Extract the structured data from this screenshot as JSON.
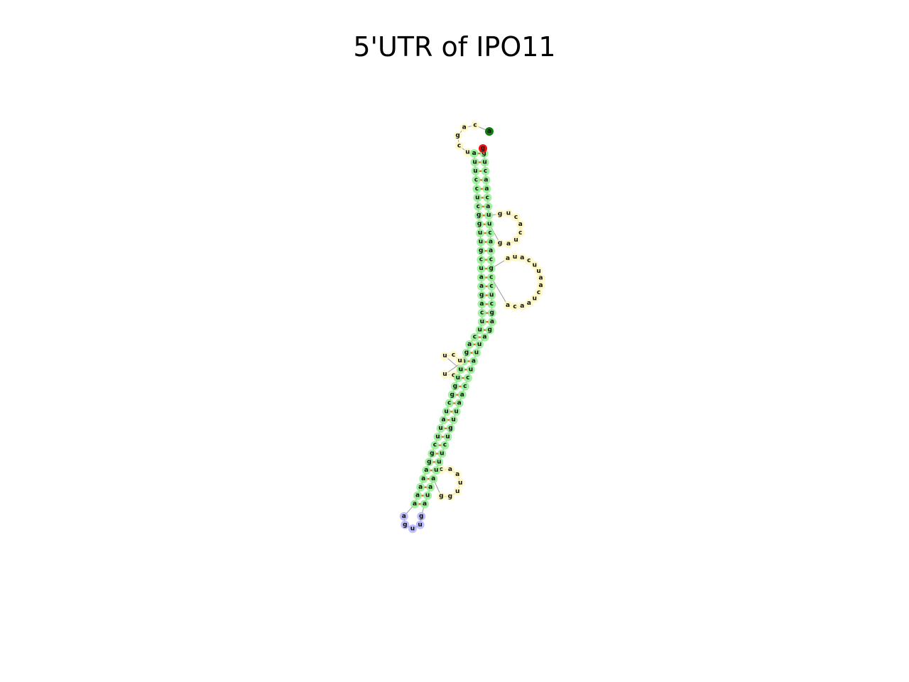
{
  "title": "5'UTR of IPO11",
  "sequence": "acagcuauuccucgguugcuaagacuucagaucuucuuuggcuauucggaaaaaaguugauaagguuaacuuucuguuaaccuauuagagcuccacaaucaauucauagcaacugaucacuguacaacuguguauuuacuauccgauaugcaguucuacauagaucguuuucaauggacuccgaacacuuacaucuguggcg",
  "first_nucleotide": "a",
  "last_nucleotide": "g",
  "colors": {
    "stem": "#90ee90",
    "interior_loop": "#fff8c0",
    "hairpin_loop": "#b4b4ff",
    "pair_bond": "#e8531a",
    "backbone": "#9a9a9a",
    "start_marker": "#0b7d0b",
    "end_marker": "#ee1111"
  }
}
